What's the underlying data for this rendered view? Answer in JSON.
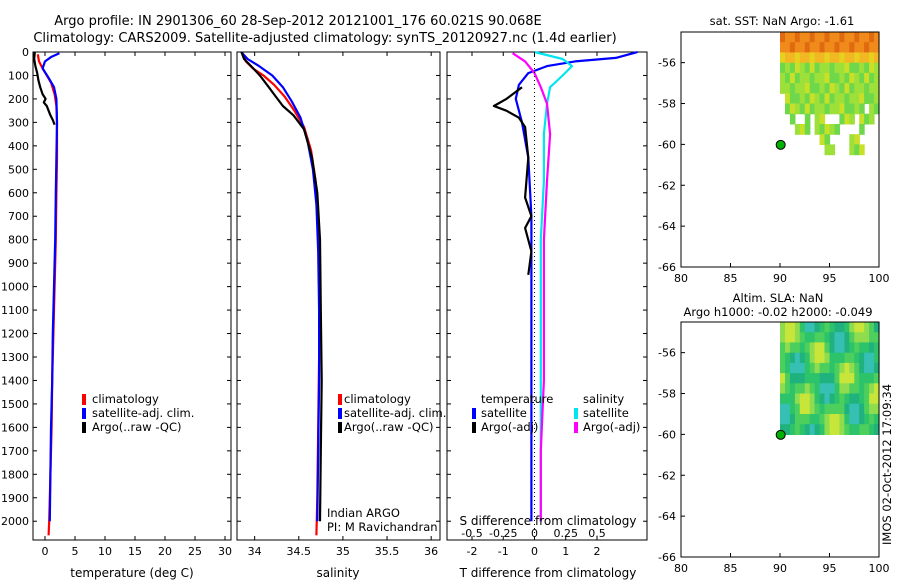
{
  "figure": {
    "title_line1": "Argo profile: IN 2901306_60 28-Sep-2012 20121001_176 60.021S 90.068E",
    "title_line2": "Climatology: CARS2009. Satellite-adjusted climatology: synTS_20120927.nc (1.4d earlier)",
    "side_stamp": "IMOS 02-Oct-2012 17:09:34",
    "colors": {
      "climatology": "#ff0000",
      "satellite": "#0000ff",
      "argo": "#000000",
      "sal_satellite": "#00e5ee",
      "sal_argo": "#ff00ff",
      "sst_marker": "#00b000",
      "background": "#ffffff"
    }
  },
  "chart_data": [
    {
      "type": "line",
      "name": "temperature-profile",
      "xlabel": "temperature (deg C)",
      "ylabel": "",
      "xlim": [
        -2,
        31
      ],
      "ylim": [
        2080,
        0
      ],
      "xticks": [
        0,
        5,
        10,
        15,
        20,
        25,
        30
      ],
      "yticks": [
        0,
        100,
        200,
        300,
        400,
        500,
        600,
        700,
        800,
        900,
        1000,
        1100,
        1200,
        1300,
        1400,
        1500,
        1600,
        1700,
        1800,
        1900,
        2000
      ],
      "legend": {
        "position": "lower-right",
        "entries": [
          {
            "label": "climatology",
            "color": "#ff0000"
          },
          {
            "label": "satellite-adj. clim.",
            "color": "#0000ff"
          },
          {
            "label": "Argo(..raw -QC)",
            "color": "#000000"
          }
        ]
      },
      "series": [
        {
          "name": "climatology",
          "color": "#ff0000",
          "points": [
            [
              -1.2,
              10
            ],
            [
              -1.0,
              40
            ],
            [
              -0.4,
              70
            ],
            [
              0.3,
              100
            ],
            [
              1.0,
              130
            ],
            [
              1.6,
              180
            ],
            [
              1.9,
              230
            ],
            [
              2.0,
              300
            ],
            [
              2.0,
              450
            ],
            [
              1.9,
              600
            ],
            [
              1.8,
              800
            ],
            [
              1.6,
              1000
            ],
            [
              1.4,
              1200
            ],
            [
              1.2,
              1400
            ],
            [
              1.1,
              1600
            ],
            [
              0.9,
              1800
            ],
            [
              0.7,
              2000
            ],
            [
              0.6,
              2060
            ]
          ]
        },
        {
          "name": "satellite-adj. clim.",
          "color": "#0000ff",
          "points": [
            [
              2.4,
              5
            ],
            [
              1.1,
              20
            ],
            [
              0.0,
              40
            ],
            [
              -0.4,
              70
            ],
            [
              0.6,
              110
            ],
            [
              1.5,
              150
            ],
            [
              1.9,
              200
            ],
            [
              2.0,
              300
            ],
            [
              1.9,
              450
            ],
            [
              1.8,
              600
            ],
            [
              1.7,
              800
            ],
            [
              1.5,
              1000
            ],
            [
              1.3,
              1200
            ],
            [
              1.2,
              1400
            ],
            [
              1.0,
              1600
            ],
            [
              0.9,
              1800
            ],
            [
              0.8,
              2000
            ]
          ]
        },
        {
          "name": "Argo",
          "color": "#000000",
          "points": [
            [
              -1.7,
              0
            ],
            [
              -1.8,
              30
            ],
            [
              -1.6,
              60
            ],
            [
              -1.3,
              90
            ],
            [
              -1.1,
              120
            ],
            [
              -0.8,
              150
            ],
            [
              -0.4,
              180
            ],
            [
              0.1,
              200
            ],
            [
              -0.2,
              215
            ],
            [
              0.3,
              230
            ],
            [
              0.6,
              250
            ],
            [
              0.9,
              270
            ],
            [
              1.3,
              290
            ],
            [
              1.6,
              310
            ]
          ]
        }
      ]
    },
    {
      "type": "line",
      "name": "salinity-profile",
      "xlabel": "salinity",
      "xlim": [
        33.8,
        36.1
      ],
      "ylim": [
        2080,
        0
      ],
      "xticks": [
        34,
        34.5,
        35,
        35.5,
        36
      ],
      "legend": {
        "position": "lower-right",
        "entries": [
          {
            "label": "climatology",
            "color": "#ff0000"
          },
          {
            "label": "satellite-adj. clim.",
            "color": "#0000ff"
          },
          {
            "label": "Argo(..raw -QC)",
            "color": "#000000"
          }
        ]
      },
      "annotation_line1": "Indian ARGO",
      "annotation_line2": "PI: M Ravichandran",
      "series": [
        {
          "name": "climatology",
          "color": "#ff0000",
          "points": [
            [
              33.87,
              10
            ],
            [
              33.9,
              40
            ],
            [
              33.98,
              70
            ],
            [
              34.1,
              100
            ],
            [
              34.22,
              140
            ],
            [
              34.34,
              190
            ],
            [
              34.45,
              250
            ],
            [
              34.56,
              320
            ],
            [
              34.64,
              420
            ],
            [
              34.69,
              550
            ],
            [
              34.72,
              700
            ],
            [
              34.73,
              1000
            ],
            [
              34.73,
              1300
            ],
            [
              34.72,
              1600
            ],
            [
              34.71,
              1900
            ],
            [
              34.7,
              2060
            ]
          ]
        },
        {
          "name": "satellite-adj. clim.",
          "color": "#0000ff",
          "points": [
            [
              33.86,
              5
            ],
            [
              33.92,
              30
            ],
            [
              34.05,
              60
            ],
            [
              34.2,
              100
            ],
            [
              34.32,
              150
            ],
            [
              34.42,
              210
            ],
            [
              34.52,
              280
            ],
            [
              34.6,
              380
            ],
            [
              34.66,
              500
            ],
            [
              34.7,
              650
            ],
            [
              34.72,
              850
            ],
            [
              34.73,
              1100
            ],
            [
              34.73,
              1400
            ],
            [
              34.72,
              1700
            ],
            [
              34.71,
              2000
            ]
          ]
        },
        {
          "name": "Argo",
          "color": "#000000",
          "points": [
            [
              33.85,
              0
            ],
            [
              33.88,
              30
            ],
            [
              33.96,
              60
            ],
            [
              34.06,
              100
            ],
            [
              34.16,
              150
            ],
            [
              34.24,
              190
            ],
            [
              34.32,
              230
            ],
            [
              34.44,
              270
            ],
            [
              34.56,
              330
            ],
            [
              34.65,
              450
            ],
            [
              34.71,
              600
            ],
            [
              34.74,
              800
            ],
            [
              34.75,
              1100
            ],
            [
              34.76,
              1400
            ],
            [
              34.75,
              1700
            ],
            [
              34.74,
              2000
            ]
          ]
        }
      ]
    },
    {
      "type": "line",
      "name": "difference-profile",
      "xlabel": "T difference from climatology",
      "top_label": "S difference from climatology",
      "xlim": [
        -2.8,
        3.6
      ],
      "ylim": [
        2080,
        0
      ],
      "xticks_T": [
        -2,
        -1,
        0,
        1,
        2
      ],
      "xticks_S": [
        "-0.5",
        "-0.25",
        "0",
        "0.25",
        "0.5"
      ],
      "xticks_S_values": [
        -2,
        -1,
        0,
        1,
        2
      ],
      "legend": {
        "position": "lower",
        "temperature_header": "temperature",
        "salinity_header": "salinity",
        "entries": [
          {
            "label": "satellite",
            "color": "#0000ff"
          },
          {
            "label": "Argo(-adj)",
            "color": "#000000"
          },
          {
            "label": "satellite",
            "color": "#00e5ee"
          },
          {
            "label": "Argo(-adj)",
            "color": "#ff00ff"
          }
        ]
      },
      "series": [
        {
          "name": "T satellite",
          "color": "#0000ff",
          "points": [
            [
              3.3,
              0
            ],
            [
              2.6,
              25
            ],
            [
              1.3,
              40
            ],
            [
              0.4,
              60
            ],
            [
              -0.2,
              90
            ],
            [
              -0.5,
              140
            ],
            [
              -0.6,
              200
            ],
            [
              -0.4,
              300
            ],
            [
              -0.2,
              450
            ],
            [
              -0.1,
              700
            ],
            [
              -0.1,
              1000
            ],
            [
              -0.1,
              1400
            ],
            [
              -0.1,
              1700
            ],
            [
              -0.1,
              2000
            ]
          ]
        },
        {
          "name": "T Argo",
          "color": "#000000",
          "points": [
            [
              -0.4,
              150
            ],
            [
              -0.6,
              170
            ],
            [
              -0.9,
              200
            ],
            [
              -1.3,
              230
            ],
            [
              -0.9,
              250
            ],
            [
              -0.5,
              280
            ],
            [
              -0.3,
              320
            ],
            [
              -0.2,
              450
            ],
            [
              -0.3,
              620
            ],
            [
              -0.1,
              700
            ],
            [
              -0.3,
              750
            ],
            [
              -0.1,
              850
            ],
            [
              -0.2,
              950
            ]
          ]
        },
        {
          "name": "S satellite",
          "color": "#00e5ee",
          "points": [
            [
              0.0,
              0
            ],
            [
              0.9,
              30
            ],
            [
              1.2,
              60
            ],
            [
              0.9,
              100
            ],
            [
              0.5,
              150
            ],
            [
              0.4,
              220
            ],
            [
              0.3,
              350
            ],
            [
              0.3,
              550
            ],
            [
              0.2,
              800
            ],
            [
              0.2,
              1100
            ],
            [
              0.2,
              1400
            ],
            [
              0.2,
              1700
            ],
            [
              0.2,
              2000
            ]
          ]
        },
        {
          "name": "S Argo",
          "color": "#ff00ff",
          "points": [
            [
              -0.7,
              5
            ],
            [
              -0.3,
              40
            ],
            [
              0.0,
              90
            ],
            [
              0.2,
              150
            ],
            [
              0.4,
              220
            ],
            [
              0.5,
              350
            ],
            [
              0.4,
              550
            ],
            [
              0.3,
              800
            ],
            [
              0.3,
              1100
            ],
            [
              0.3,
              1400
            ],
            [
              0.2,
              1700
            ],
            [
              0.2,
              2000
            ]
          ]
        }
      ]
    },
    {
      "type": "heatmap",
      "name": "sst-map",
      "title": "sat. SST: NaN Argo: -1.61",
      "xlim": [
        80,
        100
      ],
      "ylim": [
        -66,
        -54.5
      ],
      "xticks": [
        80,
        85,
        90,
        95,
        100
      ],
      "yticks": [
        -56,
        -58,
        -60,
        -62,
        -64,
        -66
      ],
      "marker": {
        "lon": 90.068,
        "lat": -60.021
      }
    },
    {
      "type": "heatmap",
      "name": "sla-map",
      "title_line1": "Altim. SLA: NaN",
      "title_line2": "Argo h1000: -0.02 h2000: -0.049",
      "xlim": [
        80,
        100
      ],
      "ylim": [
        -66,
        -54.5
      ],
      "xticks": [
        80,
        85,
        90,
        95,
        100
      ],
      "yticks": [
        -56,
        -58,
        -60,
        -62,
        -64,
        -66
      ],
      "marker": {
        "lon": 90.068,
        "lat": -60.021
      }
    }
  ]
}
